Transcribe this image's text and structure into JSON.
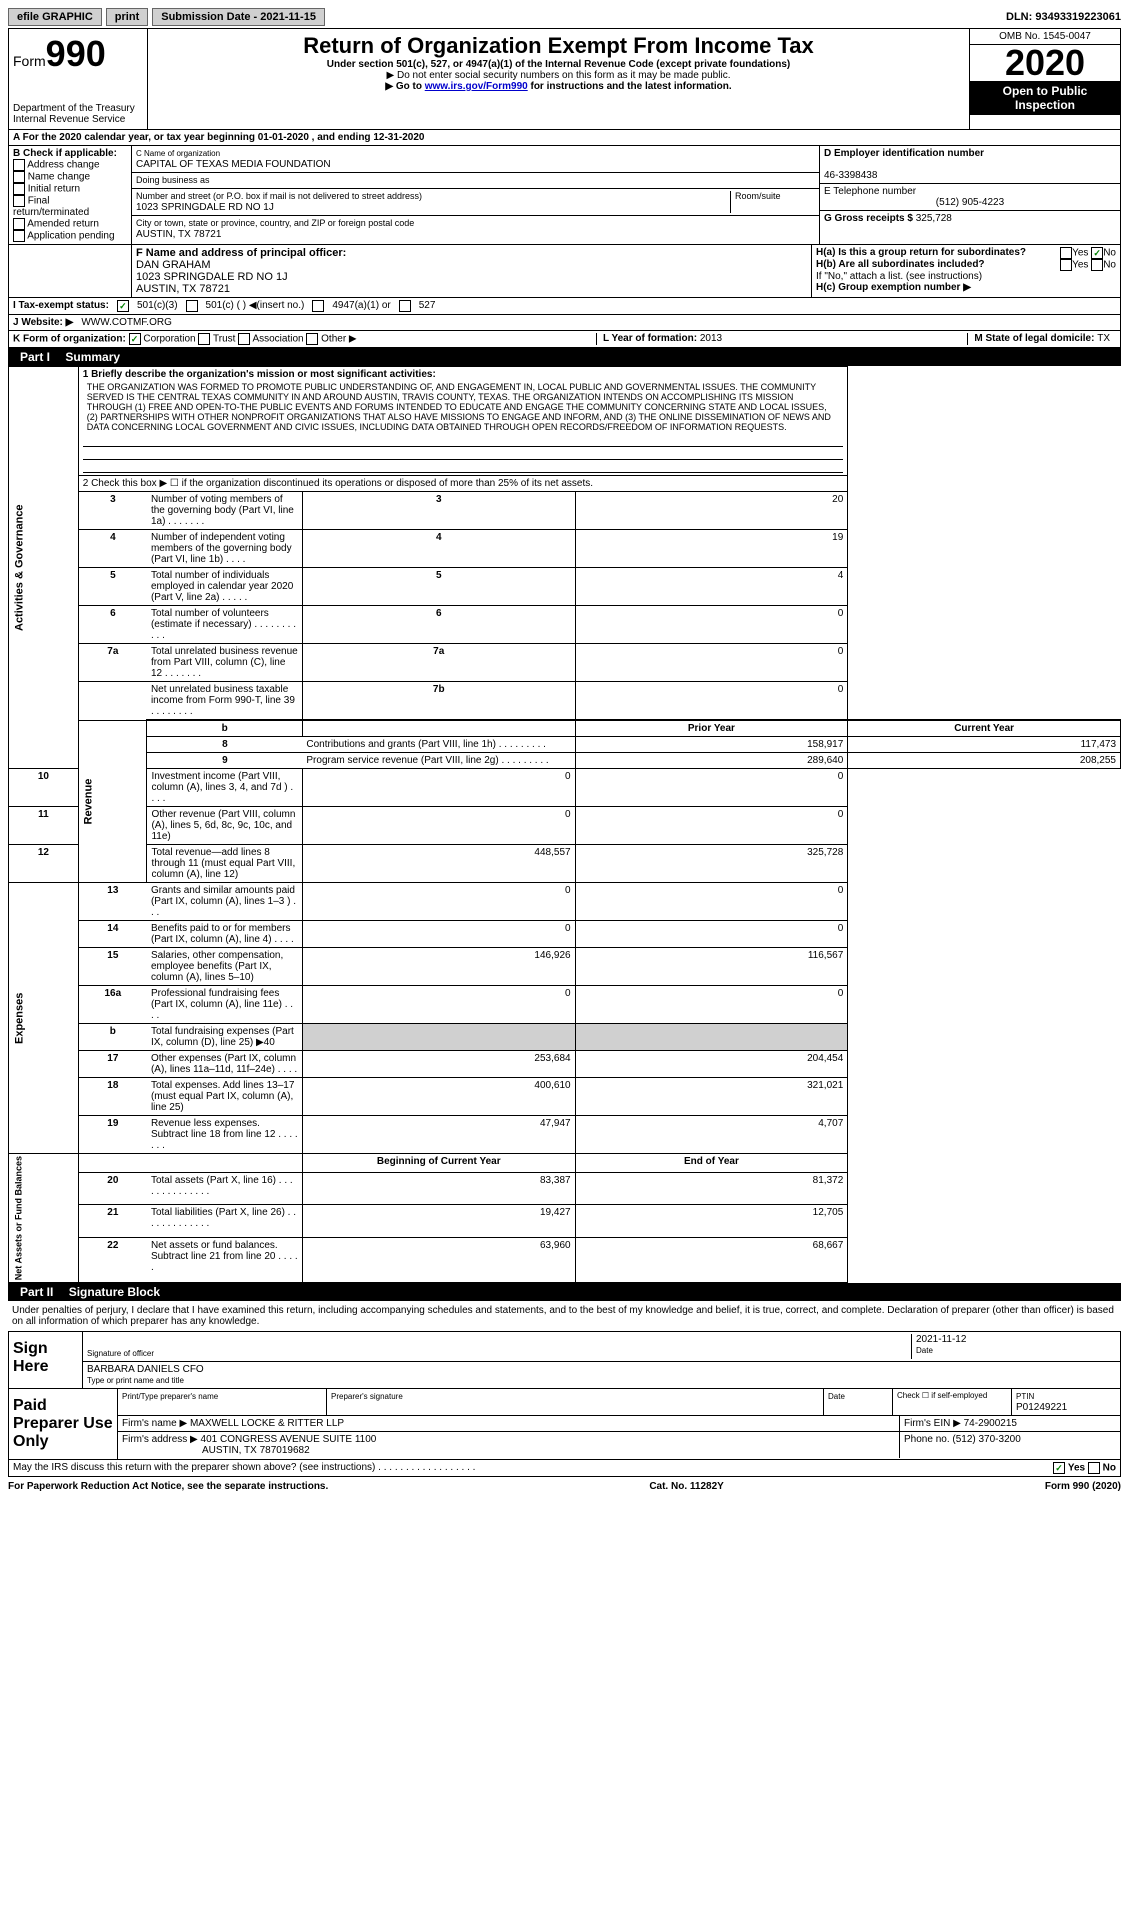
{
  "topbar": {
    "efile": "efile GRAPHIC",
    "print": "print",
    "submission_label": "Submission Date - ",
    "submission_date": "2021-11-15",
    "dln_label": "DLN: ",
    "dln": "93493319223061"
  },
  "header": {
    "form_label": "Form",
    "form_num": "990",
    "title": "Return of Organization Exempt From Income Tax",
    "subtitle": "Under section 501(c), 527, or 4947(a)(1) of the Internal Revenue Code (except private foundations)",
    "note1": "▶ Do not enter social security numbers on this form as it may be made public.",
    "note2_pre": "▶ Go to ",
    "note2_link": "www.irs.gov/Form990",
    "note2_post": " for instructions and the latest information.",
    "dept": "Department of the Treasury\nInternal Revenue Service",
    "omb": "OMB No. 1545-0047",
    "year": "2020",
    "inspection": "Open to Public Inspection"
  },
  "tax_year": {
    "line_a": "A For the 2020 calendar year, or tax year beginning 01-01-2020    , and ending 12-31-2020"
  },
  "section_b": {
    "label": "B Check if applicable:",
    "opts": [
      "Address change",
      "Name change",
      "Initial return",
      "Final return/terminated",
      "Amended return",
      "Application pending"
    ]
  },
  "section_c": {
    "name_label": "C Name of organization",
    "name": "CAPITAL OF TEXAS MEDIA FOUNDATION",
    "dba_label": "Doing business as",
    "addr_label": "Number and street (or P.O. box if mail is not delivered to street address)",
    "room_label": "Room/suite",
    "addr": "1023 SPRINGDALE RD NO 1J",
    "city_label": "City or town, state or province, country, and ZIP or foreign postal code",
    "city": "AUSTIN, TX  78721"
  },
  "section_d": {
    "label": "D Employer identification number",
    "ein": "46-3398438",
    "tel_label": "E Telephone number",
    "tel": "(512) 905-4223",
    "gross_label": "G Gross receipts $ ",
    "gross": "325,728"
  },
  "section_f": {
    "label": "F  Name and address of principal officer:",
    "name": "DAN GRAHAM",
    "addr1": "1023 SPRINGDALE RD NO 1J",
    "addr2": "AUSTIN, TX  78721"
  },
  "section_h": {
    "ha_label": "H(a)  Is this a group return for subordinates?",
    "hb_label": "H(b)  Are all subordinates included?",
    "hb_note": "If \"No,\" attach a list. (see instructions)",
    "hc_label": "H(c)  Group exemption number ▶",
    "yes": "Yes",
    "no": "No"
  },
  "tax_status": {
    "label": "I    Tax-exempt status:",
    "opt1": "501(c)(3)",
    "opt2": "501(c) (  ) ◀(insert no.)",
    "opt3": "4947(a)(1) or",
    "opt4": "527"
  },
  "website": {
    "label": "J   Website: ▶",
    "value": "WWW.COTMF.ORG"
  },
  "section_k": {
    "label": "K Form of organization:",
    "corp": "Corporation",
    "trust": "Trust",
    "assoc": "Association",
    "other": "Other ▶",
    "l_label": "L Year of formation: ",
    "l_val": "2013",
    "m_label": "M State of legal domicile: ",
    "m_val": "TX"
  },
  "part1": {
    "label": "Part I",
    "title": "Summary",
    "line1_label": "1  Briefly describe the organization's mission or most significant activities:",
    "mission": "THE ORGANIZATION WAS FORMED TO PROMOTE PUBLIC UNDERSTANDING OF, AND ENGAGEMENT IN, LOCAL PUBLIC AND GOVERNMENTAL ISSUES. THE COMMUNITY SERVED IS THE CENTRAL TEXAS COMMUNITY IN AND AROUND AUSTIN, TRAVIS COUNTY, TEXAS. THE ORGANIZATION INTENDS ON ACCOMPLISHING ITS MISSION THROUGH (1) FREE AND OPEN-TO-THE PUBLIC EVENTS AND FORUMS INTENDED TO EDUCATE AND ENGAGE THE COMMUNITY CONCERNING STATE AND LOCAL ISSUES, (2) PARTNERSHIPS WITH OTHER NONPROFIT ORGANIZATIONS THAT ALSO HAVE MISSIONS TO ENGAGE AND INFORM, AND (3) THE ONLINE DISSEMINATION OF NEWS AND DATA CONCERNING LOCAL GOVERNMENT AND CIVIC ISSUES, INCLUDING DATA OBTAINED THROUGH OPEN RECORDS/FREEDOM OF INFORMATION REQUESTS.",
    "line2": "2   Check this box ▶ ☐ if the organization discontinued its operations or disposed of more than 25% of its net assets.",
    "governance_label": "Activities & Governance",
    "revenue_label": "Revenue",
    "expenses_label": "Expenses",
    "netassets_label": "Net Assets or Fund Balances",
    "rows_gov": [
      {
        "n": "3",
        "text": "Number of voting members of the governing body (Part VI, line 1a)  .    .    .    .    .    .    .",
        "box": "3",
        "val": "20"
      },
      {
        "n": "4",
        "text": "Number of independent voting members of the governing body (Part VI, line 1b)  .    .    .    .",
        "box": "4",
        "val": "19"
      },
      {
        "n": "5",
        "text": "Total number of individuals employed in calendar year 2020 (Part V, line 2a)  .    .    .    .    .",
        "box": "5",
        "val": "4"
      },
      {
        "n": "6",
        "text": "Total number of volunteers (estimate if necessary)  .    .    .    .    .    .    .    .    .    .    .",
        "box": "6",
        "val": "0"
      },
      {
        "n": "7a",
        "text": "Total unrelated business revenue from Part VIII, column (C), line 12  .    .    .    .    .    .    .",
        "box": "7a",
        "val": "0"
      },
      {
        "n": "",
        "text": "Net unrelated business taxable income from Form 990-T, line 39  .    .    .    .    .    .    .    .",
        "box": "7b",
        "val": "0"
      }
    ],
    "prior_year": "Prior Year",
    "current_year": "Current Year",
    "boy": "Beginning of Current Year",
    "eoy": "End of Year",
    "rows_rev": [
      {
        "n": "8",
        "text": "Contributions and grants (Part VIII, line 1h)   .    .    .    .    .    .    .    .    .",
        "py": "158,917",
        "cy": "117,473"
      },
      {
        "n": "9",
        "text": "Program service revenue (Part VIII, line 2g)   .    .    .    .    .    .    .    .    .",
        "py": "289,640",
        "cy": "208,255"
      },
      {
        "n": "10",
        "text": "Investment income (Part VIII, column (A), lines 3, 4, and 7d )  .    .    .    .",
        "py": "0",
        "cy": "0"
      },
      {
        "n": "11",
        "text": "Other revenue (Part VIII, column (A), lines 5, 6d, 8c, 9c, 10c, and 11e)",
        "py": "0",
        "cy": "0"
      },
      {
        "n": "12",
        "text": "Total revenue—add lines 8 through 11 (must equal Part VIII, column (A), line 12)",
        "py": "448,557",
        "cy": "325,728"
      }
    ],
    "rows_exp": [
      {
        "n": "13",
        "text": "Grants and similar amounts paid (Part IX, column (A), lines 1–3 )  .    .    .",
        "py": "0",
        "cy": "0"
      },
      {
        "n": "14",
        "text": "Benefits paid to or for members (Part IX, column (A), line 4)  .    .    .    .",
        "py": "0",
        "cy": "0"
      },
      {
        "n": "15",
        "text": "Salaries, other compensation, employee benefits (Part IX, column (A), lines 5–10)",
        "py": "146,926",
        "cy": "116,567"
      },
      {
        "n": "16a",
        "text": "Professional fundraising fees (Part IX, column (A), line 11e)  .    .    .    .",
        "py": "0",
        "cy": "0"
      },
      {
        "n": "b",
        "text": "Total fundraising expenses (Part IX, column (D), line 25) ▶40",
        "py": "gray",
        "cy": "gray"
      },
      {
        "n": "17",
        "text": "Other expenses (Part IX, column (A), lines 11a–11d, 11f–24e)  .    .    .    .",
        "py": "253,684",
        "cy": "204,454"
      },
      {
        "n": "18",
        "text": "Total expenses. Add lines 13–17 (must equal Part IX, column (A), line 25)",
        "py": "400,610",
        "cy": "321,021"
      },
      {
        "n": "19",
        "text": "Revenue less expenses. Subtract line 18 from line 12  .    .    .    .    .    .    .",
        "py": "47,947",
        "cy": "4,707"
      }
    ],
    "rows_net": [
      {
        "n": "20",
        "text": "Total assets (Part X, line 16)  .    .    .    .    .    .    .    .    .    .    .    .    .    .",
        "py": "83,387",
        "cy": "81,372"
      },
      {
        "n": "21",
        "text": "Total liabilities (Part X, line 26)  .    .    .    .    .    .    .    .    .    .    .    .    .",
        "py": "19,427",
        "cy": "12,705"
      },
      {
        "n": "22",
        "text": "Net assets or fund balances. Subtract line 21 from line 20  .    .    .    .    .",
        "py": "63,960",
        "cy": "68,667"
      }
    ]
  },
  "part2": {
    "label": "Part II",
    "title": "Signature Block",
    "declaration": "Under penalties of perjury, I declare that I have examined this return, including accompanying schedules and statements, and to the best of my knowledge and belief, it is true, correct, and complete. Declaration of preparer (other than officer) is based on all information of which preparer has any knowledge.",
    "sign_here": "Sign Here",
    "sig_officer": "Signature of officer",
    "date_label": "Date",
    "sig_date": "2021-11-12",
    "officer_name": "BARBARA DANIELS CFO",
    "type_name": "Type or print name and title",
    "paid_label": "Paid Preparer Use Only",
    "print_name": "Print/Type preparer's name",
    "prep_sig": "Preparer's signature",
    "check_self": "Check ☐ if self-employed",
    "ptin_label": "PTIN",
    "ptin": "P01249221",
    "firm_name_label": "Firm's name      ▶ ",
    "firm_name": "MAXWELL LOCKE & RITTER LLP",
    "firm_ein_label": "Firm's EIN ▶ ",
    "firm_ein": "74-2900215",
    "firm_addr_label": "Firm's address ▶ ",
    "firm_addr1": "401 CONGRESS AVENUE SUITE 1100",
    "firm_addr2": "AUSTIN, TX  787019682",
    "phone_label": "Phone no. ",
    "phone": "(512) 370-3200",
    "discuss": "May the IRS discuss this return with the preparer shown above? (see instructions)   .    .    .    .    .    .    .    .    .    .    .    .    .    .    .    .    .    ."
  },
  "footer": {
    "left": "For Paperwork Reduction Act Notice, see the separate instructions.",
    "center": "Cat. No. 11282Y",
    "right": "Form 990 (2020)"
  },
  "colors": {
    "link": "#0000cc",
    "check": "#008000"
  }
}
